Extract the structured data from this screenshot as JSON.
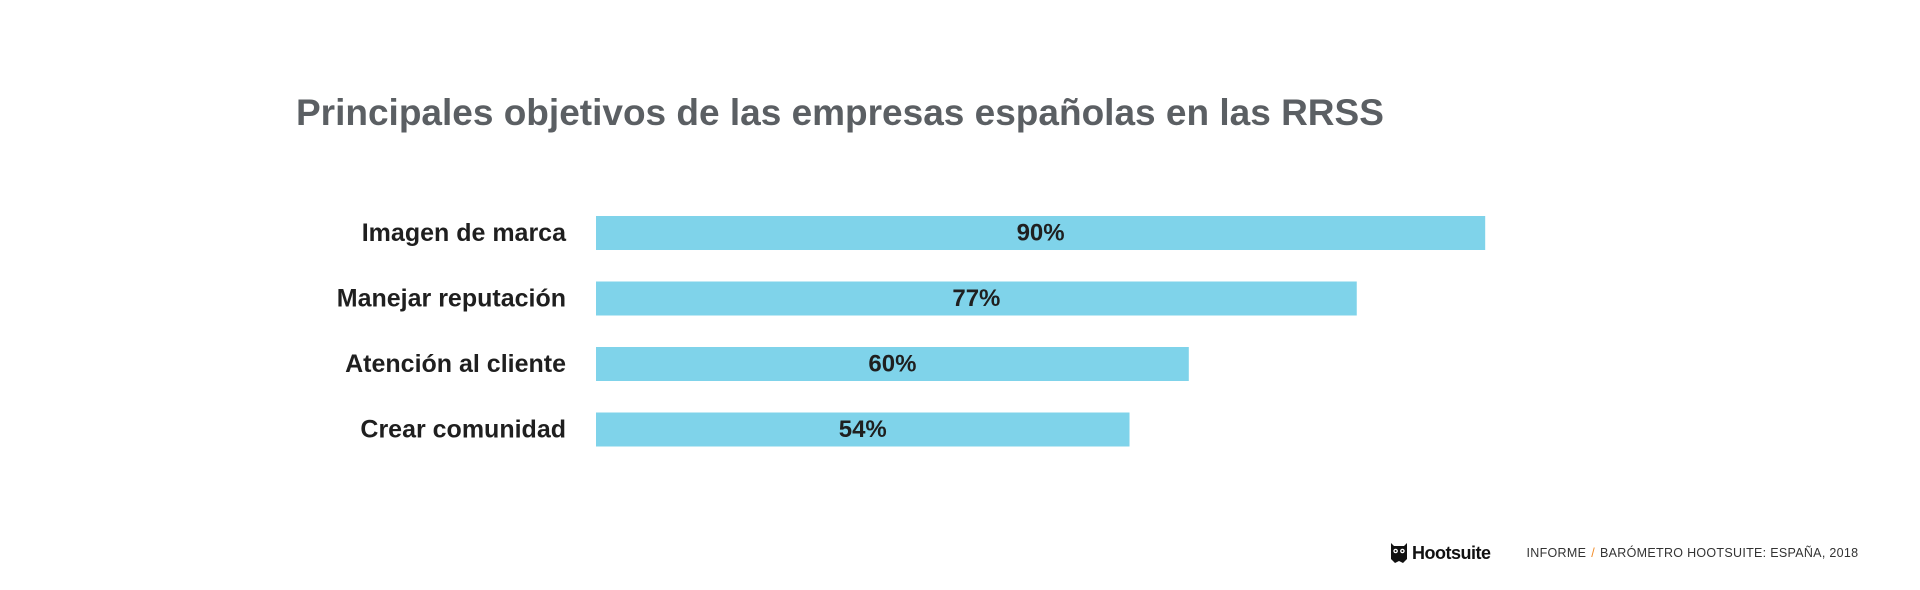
{
  "chart_data": {
    "type": "bar",
    "orientation": "horizontal",
    "title": "Principales objetivos de las empresas españolas en las RRSS",
    "categories": [
      "Imagen de marca",
      "Manejar reputación",
      "Atención al cliente",
      "Crear comunidad"
    ],
    "values": [
      90,
      77,
      60,
      54
    ],
    "value_labels": [
      "90%",
      "77%",
      "60%",
      "54%"
    ],
    "unit": "%",
    "xlim": [
      0,
      100
    ],
    "grid": false,
    "legend": "none",
    "bar_color": "#7fd3ea"
  },
  "footer": {
    "brand": "Hootsuite",
    "report_prefix": "INFORME",
    "separator": "/",
    "report_name": "BARÓMETRO HOOTSUITE: ESPAÑA, 2018",
    "separator_color": "#f28c28"
  }
}
